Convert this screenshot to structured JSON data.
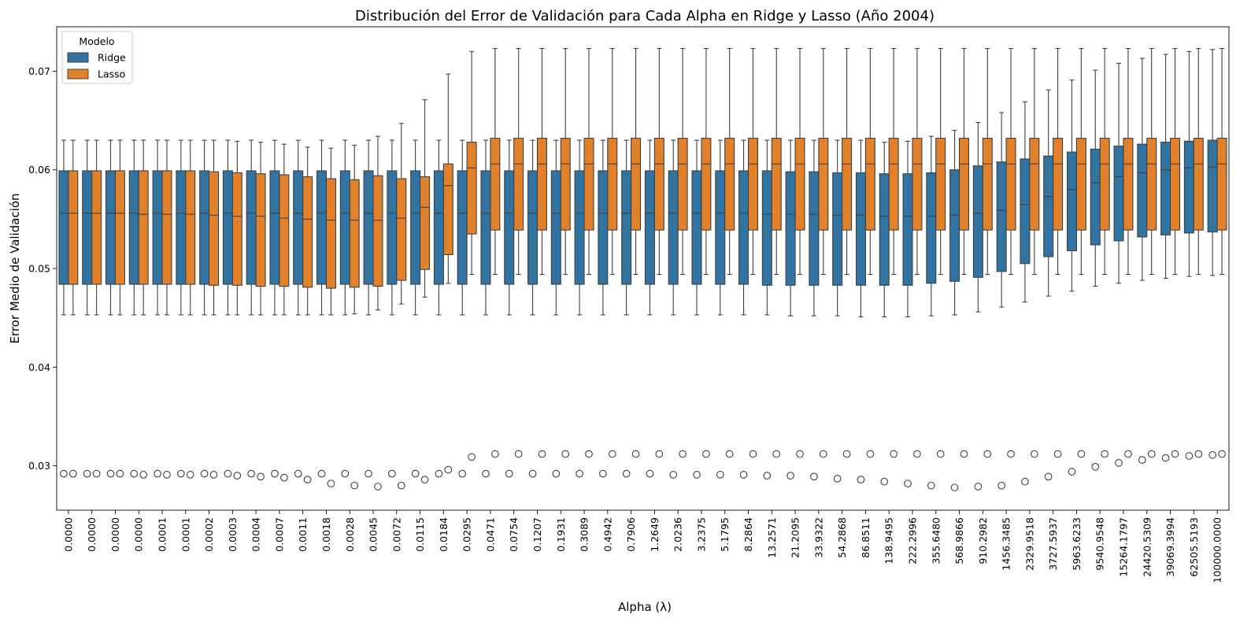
{
  "chart_data": {
    "type": "box",
    "title": "Distribución del Error de Validación para Cada Alpha en Ridge y Lasso (Año 2004)",
    "xlabel": "Alpha (λ)",
    "ylabel": "Error Medio de Validación",
    "ylim": [
      0.0255,
      0.0745
    ],
    "yticks": [
      0.03,
      0.04,
      0.05,
      0.06,
      0.07
    ],
    "ytick_labels": [
      "0.03",
      "0.04",
      "0.05",
      "0.06",
      "0.07"
    ],
    "grid": false,
    "legend": {
      "title": "Modelo",
      "placement": "top-left"
    },
    "categories": [
      "0.0000",
      "0.0000",
      "0.0000",
      "0.0000",
      "0.0001",
      "0.0001",
      "0.0002",
      "0.0003",
      "0.0004",
      "0.0007",
      "0.0011",
      "0.0018",
      "0.0028",
      "0.0045",
      "0.0072",
      "0.0115",
      "0.0184",
      "0.0295",
      "0.0471",
      "0.0754",
      "0.1207",
      "0.1931",
      "0.3089",
      "0.4942",
      "0.7906",
      "1.2649",
      "2.0236",
      "3.2375",
      "5.1795",
      "8.2864",
      "13.2571",
      "21.2095",
      "33.9322",
      "54.2868",
      "86.8511",
      "138.9495",
      "222.2996",
      "355.6480",
      "568.9866",
      "910.2982",
      "1456.3485",
      "2329.9518",
      "3727.5937",
      "5963.6233",
      "9540.9548",
      "15264.1797",
      "24420.5309",
      "39069.3994",
      "62505.5193",
      "100000.0000"
    ],
    "series": [
      {
        "name": "Ridge",
        "color": "#3274a1",
        "q1": [
          0.0484,
          0.0484,
          0.0484,
          0.0484,
          0.0484,
          0.0484,
          0.0484,
          0.0484,
          0.0484,
          0.0484,
          0.0484,
          0.0484,
          0.0484,
          0.0484,
          0.0484,
          0.0484,
          0.0484,
          0.0484,
          0.0484,
          0.0484,
          0.0484,
          0.0484,
          0.0484,
          0.0484,
          0.0484,
          0.0484,
          0.0484,
          0.0484,
          0.0484,
          0.0484,
          0.0483,
          0.0483,
          0.0483,
          0.0483,
          0.0483,
          0.0483,
          0.0483,
          0.0485,
          0.0487,
          0.0491,
          0.0497,
          0.0505,
          0.0512,
          0.0518,
          0.0524,
          0.0528,
          0.0532,
          0.0534,
          0.0536,
          0.0537
        ],
        "median": [
          0.0556,
          0.0556,
          0.0556,
          0.0556,
          0.0556,
          0.0556,
          0.0556,
          0.0556,
          0.0556,
          0.0556,
          0.0556,
          0.0556,
          0.0556,
          0.0556,
          0.0556,
          0.0556,
          0.0556,
          0.0556,
          0.0556,
          0.0556,
          0.0556,
          0.0556,
          0.0556,
          0.0556,
          0.0556,
          0.0556,
          0.0556,
          0.0556,
          0.0556,
          0.0556,
          0.0555,
          0.0555,
          0.0555,
          0.0554,
          0.0554,
          0.0553,
          0.0553,
          0.0553,
          0.0554,
          0.0556,
          0.0559,
          0.0565,
          0.0573,
          0.058,
          0.0587,
          0.0593,
          0.0597,
          0.06,
          0.0602,
          0.0603
        ],
        "q3": [
          0.0599,
          0.0599,
          0.0599,
          0.0599,
          0.0599,
          0.0599,
          0.0599,
          0.0599,
          0.0599,
          0.0599,
          0.0599,
          0.0599,
          0.0599,
          0.0599,
          0.0599,
          0.0599,
          0.0599,
          0.0599,
          0.0599,
          0.0599,
          0.0599,
          0.0599,
          0.0599,
          0.0599,
          0.0599,
          0.0599,
          0.0599,
          0.0599,
          0.0599,
          0.0599,
          0.0599,
          0.0598,
          0.0598,
          0.0597,
          0.0597,
          0.0596,
          0.0596,
          0.0597,
          0.06,
          0.0604,
          0.0608,
          0.0611,
          0.0614,
          0.0618,
          0.0621,
          0.0624,
          0.0626,
          0.0628,
          0.0629,
          0.063
        ],
        "whisker_low": [
          0.0453,
          0.0453,
          0.0453,
          0.0453,
          0.0453,
          0.0453,
          0.0453,
          0.0453,
          0.0453,
          0.0453,
          0.0453,
          0.0453,
          0.0453,
          0.0453,
          0.0453,
          0.0453,
          0.0453,
          0.0453,
          0.0453,
          0.0453,
          0.0453,
          0.0453,
          0.0453,
          0.0453,
          0.0453,
          0.0453,
          0.0453,
          0.0453,
          0.0453,
          0.0453,
          0.0453,
          0.0452,
          0.0452,
          0.0452,
          0.0451,
          0.0451,
          0.0451,
          0.0452,
          0.0453,
          0.0456,
          0.0461,
          0.0466,
          0.0472,
          0.0477,
          0.0482,
          0.0485,
          0.0488,
          0.049,
          0.0492,
          0.0493
        ],
        "whisker_high": [
          0.063,
          0.063,
          0.063,
          0.063,
          0.063,
          0.063,
          0.063,
          0.063,
          0.063,
          0.063,
          0.063,
          0.063,
          0.063,
          0.063,
          0.063,
          0.063,
          0.063,
          0.063,
          0.063,
          0.063,
          0.063,
          0.063,
          0.063,
          0.063,
          0.063,
          0.063,
          0.063,
          0.063,
          0.063,
          0.063,
          0.063,
          0.063,
          0.063,
          0.063,
          0.063,
          0.0628,
          0.0629,
          0.0634,
          0.064,
          0.0648,
          0.0658,
          0.0669,
          0.0681,
          0.0691,
          0.0701,
          0.0708,
          0.0713,
          0.0717,
          0.072,
          0.0722
        ],
        "outlier": [
          0.0292,
          0.0292,
          0.0292,
          0.0292,
          0.0292,
          0.0292,
          0.0292,
          0.0292,
          0.0292,
          0.0292,
          0.0292,
          0.0292,
          0.0292,
          0.0292,
          0.0292,
          0.0292,
          0.0292,
          0.0292,
          0.0292,
          0.0292,
          0.0292,
          0.0292,
          0.0292,
          0.0292,
          0.0292,
          0.0292,
          0.0291,
          0.0291,
          0.0291,
          0.0291,
          0.029,
          0.029,
          0.0289,
          0.0287,
          0.0286,
          0.0284,
          0.0282,
          0.028,
          0.0278,
          0.0279,
          0.028,
          0.0284,
          0.0289,
          0.0294,
          0.0299,
          0.0303,
          0.0306,
          0.0308,
          0.031,
          0.0311
        ]
      },
      {
        "name": "Lasso",
        "color": "#e1812c",
        "q1": [
          0.0484,
          0.0484,
          0.0484,
          0.0484,
          0.0484,
          0.0484,
          0.0483,
          0.0483,
          0.0482,
          0.0482,
          0.0481,
          0.048,
          0.0481,
          0.0482,
          0.0488,
          0.0499,
          0.0514,
          0.0535,
          0.0539,
          0.0539,
          0.0539,
          0.0539,
          0.0539,
          0.0539,
          0.0539,
          0.0539,
          0.0539,
          0.0539,
          0.0539,
          0.0539,
          0.0539,
          0.0539,
          0.0539,
          0.0539,
          0.0539,
          0.0539,
          0.0539,
          0.0539,
          0.0539,
          0.0539,
          0.0539,
          0.0539,
          0.0539,
          0.0539,
          0.0539,
          0.0539,
          0.0539,
          0.0539,
          0.0539,
          0.0539
        ],
        "median": [
          0.0556,
          0.0556,
          0.0556,
          0.0555,
          0.0555,
          0.0555,
          0.0554,
          0.0553,
          0.0553,
          0.0551,
          0.055,
          0.0549,
          0.0549,
          0.0549,
          0.0551,
          0.0562,
          0.0584,
          0.0602,
          0.0606,
          0.0606,
          0.0606,
          0.0606,
          0.0606,
          0.0606,
          0.0606,
          0.0606,
          0.0606,
          0.0606,
          0.0606,
          0.0606,
          0.0606,
          0.0606,
          0.0606,
          0.0606,
          0.0606,
          0.0606,
          0.0606,
          0.0606,
          0.0606,
          0.0606,
          0.0606,
          0.0606,
          0.0606,
          0.0606,
          0.0606,
          0.0606,
          0.0606,
          0.0606,
          0.0606,
          0.0606
        ],
        "q3": [
          0.0599,
          0.0599,
          0.0599,
          0.0599,
          0.0599,
          0.0599,
          0.0598,
          0.0597,
          0.0596,
          0.0595,
          0.0593,
          0.0591,
          0.059,
          0.0594,
          0.0591,
          0.0593,
          0.0606,
          0.0628,
          0.0632,
          0.0632,
          0.0632,
          0.0632,
          0.0632,
          0.0632,
          0.0632,
          0.0632,
          0.0632,
          0.0632,
          0.0632,
          0.0632,
          0.0632,
          0.0632,
          0.0632,
          0.0632,
          0.0632,
          0.0632,
          0.0632,
          0.0632,
          0.0632,
          0.0632,
          0.0632,
          0.0632,
          0.0632,
          0.0632,
          0.0632,
          0.0632,
          0.0632,
          0.0632,
          0.0632,
          0.0632
        ],
        "whisker_low": [
          0.0453,
          0.0453,
          0.0453,
          0.0453,
          0.0453,
          0.0453,
          0.0453,
          0.0453,
          0.0453,
          0.0453,
          0.0453,
          0.0453,
          0.0454,
          0.0458,
          0.0464,
          0.0471,
          0.0485,
          0.0494,
          0.0494,
          0.0494,
          0.0494,
          0.0494,
          0.0494,
          0.0494,
          0.0494,
          0.0494,
          0.0494,
          0.0494,
          0.0494,
          0.0494,
          0.0494,
          0.0494,
          0.0494,
          0.0494,
          0.0494,
          0.0494,
          0.0494,
          0.0494,
          0.0494,
          0.0494,
          0.0494,
          0.0494,
          0.0494,
          0.0494,
          0.0494,
          0.0494,
          0.0494,
          0.0494,
          0.0494,
          0.0494
        ],
        "whisker_high": [
          0.063,
          0.063,
          0.063,
          0.063,
          0.063,
          0.063,
          0.063,
          0.0629,
          0.0628,
          0.0626,
          0.0623,
          0.0622,
          0.0625,
          0.0634,
          0.0647,
          0.0671,
          0.0697,
          0.072,
          0.0723,
          0.0723,
          0.0723,
          0.0723,
          0.0723,
          0.0723,
          0.0723,
          0.0723,
          0.0723,
          0.0723,
          0.0723,
          0.0723,
          0.0723,
          0.0723,
          0.0723,
          0.0723,
          0.0723,
          0.0723,
          0.0723,
          0.0723,
          0.0723,
          0.0723,
          0.0723,
          0.0723,
          0.0723,
          0.0723,
          0.0723,
          0.0723,
          0.0723,
          0.0723,
          0.0723,
          0.0723
        ],
        "outlier": [
          0.0292,
          0.0292,
          0.0292,
          0.0291,
          0.0291,
          0.0291,
          0.0291,
          0.029,
          0.0289,
          0.0288,
          0.0286,
          0.0282,
          0.028,
          0.0279,
          0.028,
          0.0286,
          0.0296,
          0.0309,
          0.0312,
          0.0312,
          0.0312,
          0.0312,
          0.0312,
          0.0312,
          0.0312,
          0.0312,
          0.0312,
          0.0312,
          0.0312,
          0.0312,
          0.0312,
          0.0312,
          0.0312,
          0.0312,
          0.0312,
          0.0312,
          0.0312,
          0.0312,
          0.0312,
          0.0312,
          0.0312,
          0.0312,
          0.0312,
          0.0312,
          0.0312,
          0.0312,
          0.0312,
          0.0312,
          0.0312,
          0.0312
        ]
      }
    ]
  }
}
